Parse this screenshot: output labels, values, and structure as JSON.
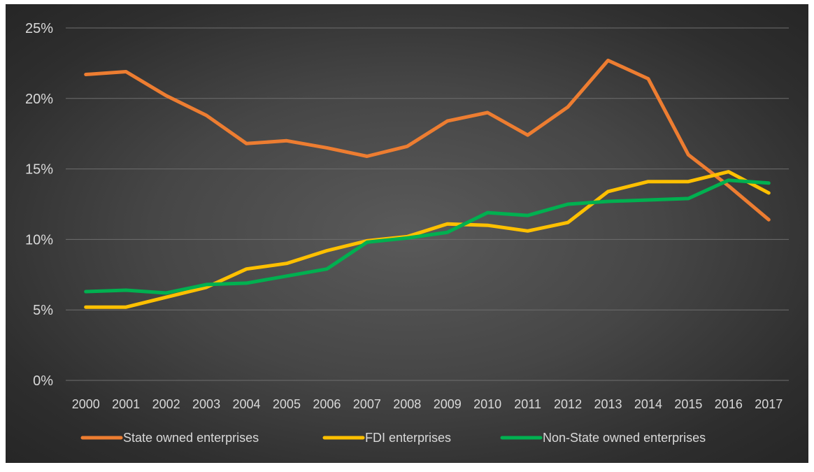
{
  "chart_data": {
    "type": "line",
    "title": "",
    "xlabel": "",
    "ylabel": "",
    "categories": [
      "2000",
      "2001",
      "2002",
      "2003",
      "2004",
      "2005",
      "2006",
      "2007",
      "2008",
      "2009",
      "2010",
      "2011",
      "2012",
      "2013",
      "2014",
      "2015",
      "2016",
      "2017"
    ],
    "y_ticks": [
      "0%",
      "5%",
      "10%",
      "15%",
      "20%",
      "25%"
    ],
    "ylim": [
      0,
      25
    ],
    "grid": true,
    "legend_position": "bottom",
    "series": [
      {
        "name": "State owned enterprises",
        "color": "#ED7D31",
        "values": [
          21.7,
          21.9,
          20.2,
          18.8,
          16.8,
          17.0,
          16.5,
          15.9,
          16.6,
          18.4,
          19.0,
          17.4,
          19.4,
          22.7,
          21.4,
          16.0,
          13.8,
          11.4
        ]
      },
      {
        "name": "FDI enterprises",
        "color": "#FFC000",
        "values": [
          5.2,
          5.2,
          5.9,
          6.6,
          7.9,
          8.3,
          9.2,
          9.9,
          10.2,
          11.1,
          11.0,
          10.6,
          11.2,
          13.4,
          14.1,
          14.1,
          14.8,
          13.3
        ]
      },
      {
        "name": "Non-State owned enterprises",
        "color": "#00B050",
        "values": [
          6.3,
          6.4,
          6.2,
          6.8,
          6.9,
          7.4,
          7.9,
          9.8,
          10.1,
          10.5,
          11.9,
          11.7,
          12.5,
          12.7,
          12.8,
          12.9,
          14.2,
          14.0
        ]
      }
    ]
  }
}
